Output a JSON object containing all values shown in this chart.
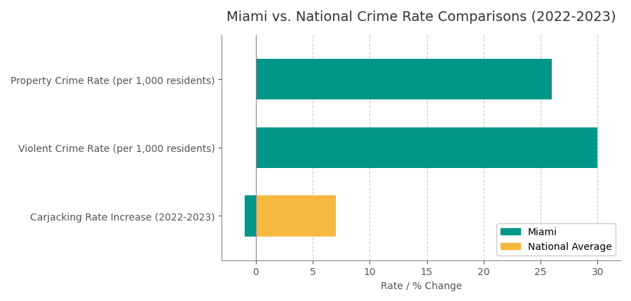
{
  "title": "Miami vs. National Crime Rate Comparisons (2022-2023)",
  "categories": [
    "Carjacking Rate Increase (2022-2023)",
    "Violent Crime Rate (per 1,000 residents)",
    "Property Crime Rate (per 1,000 residents)"
  ],
  "miami_values": [
    -1,
    30,
    26
  ],
  "national_values": [
    7,
    null,
    null
  ],
  "miami_color": "#009688",
  "national_color": "#F5B942",
  "xlabel": "Rate / % Change",
  "xlim": [
    -3,
    32
  ],
  "xticks": [
    0,
    5,
    10,
    15,
    20,
    25,
    30
  ],
  "background_color": "#ffffff",
  "grid_color": "#cccccc",
  "title_fontsize": 14,
  "label_fontsize": 10,
  "tick_fontsize": 10,
  "legend_labels": [
    "Miami",
    "National Average"
  ]
}
